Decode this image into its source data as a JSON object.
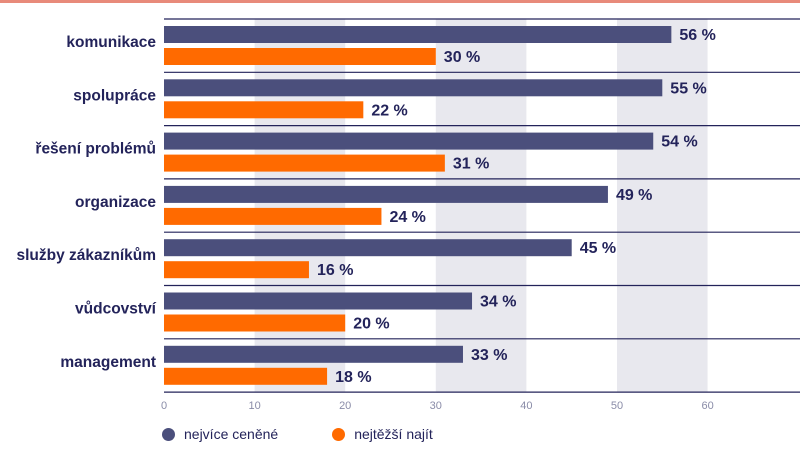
{
  "chart_data": {
    "type": "bar",
    "orientation": "horizontal",
    "categories": [
      "komunikace",
      "spolupráce",
      "řešení problémů",
      "organizace",
      "služby zákazníkům",
      "vůdcovství",
      "management"
    ],
    "series": [
      {
        "name": "nejvíce ceněné",
        "values": [
          56,
          55,
          54,
          49,
          45,
          34,
          33
        ],
        "labels": [
          "56 %",
          "55 %",
          "54 %",
          "49 %",
          "45 %",
          "34 %",
          "33 %"
        ]
      },
      {
        "name": "nejtěžší najít",
        "values": [
          30,
          22,
          31,
          24,
          16,
          20,
          18
        ],
        "labels": [
          "30 %",
          "22 %",
          "31 %",
          "24 %",
          "16 %",
          "20 %",
          "18 %"
        ]
      }
    ],
    "xlim": [
      0,
      70
    ],
    "xticks": [
      "0",
      "10",
      "20",
      "30",
      "40",
      "50",
      "60"
    ],
    "grid": "alternating-bands",
    "legend_position": "bottom-left"
  },
  "colors": {
    "series1": "#4b4f7c",
    "series2": "#ff6a00",
    "band": "#e8e8ee",
    "separator": "#23235a",
    "text": "#23235a",
    "tick": "#8a8ca8",
    "top_line": "#e88a7a"
  }
}
